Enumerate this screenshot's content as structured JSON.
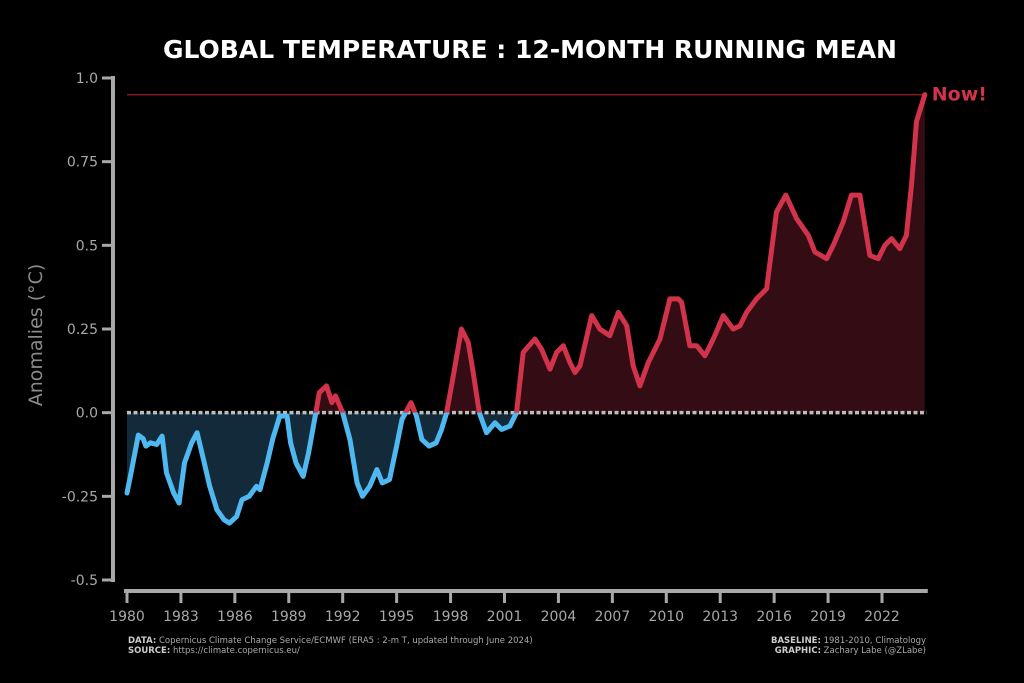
{
  "chart_data": {
    "type": "area",
    "title": "GLOBAL TEMPERATURE : 12-MONTH RUNNING MEAN",
    "xlabel": "",
    "ylabel": "Anomalies (°C)",
    "xlim": [
      1980,
      2024.5
    ],
    "ylim": [
      -0.5,
      1.0
    ],
    "yticks": [
      -0.5,
      -0.25,
      0.0,
      0.25,
      0.5,
      0.75,
      1.0
    ],
    "ytick_labels": [
      "-0.5",
      "-0.25",
      "0.0",
      "0.25",
      "0.5",
      "0.75",
      "1.0"
    ],
    "xticks": [
      1980,
      1983,
      1986,
      1989,
      1992,
      1995,
      1998,
      2001,
      2004,
      2007,
      2010,
      2013,
      2016,
      2019,
      2022
    ],
    "xtick_labels": [
      "1980",
      "1983",
      "1986",
      "1989",
      "1992",
      "1995",
      "1998",
      "2001",
      "2004",
      "2007",
      "2010",
      "2013",
      "2016",
      "2019",
      "2022"
    ],
    "grid": false,
    "positive_color": "#d0334a",
    "negative_color": "#4fb8f0",
    "positive_fill": "#330c14",
    "negative_fill": "#122a3a",
    "reference_line": {
      "value": 0.95,
      "color": "#a01e2e"
    },
    "annotation": "Now!",
    "series": [
      {
        "name": "12-month running mean",
        "x": [
          1980.0,
          1980.26,
          1980.63,
          1980.9,
          1981.05,
          1981.3,
          1981.65,
          1981.95,
          1982.2,
          1982.6,
          1982.9,
          1983.2,
          1983.6,
          1983.9,
          1984.3,
          1984.6,
          1985.0,
          1985.4,
          1985.7,
          1986.1,
          1986.4,
          1986.8,
          1987.2,
          1987.4,
          1987.8,
          1988.1,
          1988.5,
          1988.9,
          1989.1,
          1989.4,
          1989.8,
          1990.1,
          1990.5,
          1990.7,
          1991.1,
          1991.4,
          1991.6,
          1992.0,
          1992.4,
          1992.8,
          1993.1,
          1993.5,
          1993.9,
          1994.2,
          1994.6,
          1995.0,
          1995.3,
          1995.8,
          1996.1,
          1996.4,
          1996.8,
          1997.2,
          1997.5,
          1997.78,
          1998.15,
          1998.6,
          1998.98,
          1999.26,
          1999.6,
          2000.0,
          2000.47,
          2000.84,
          2001.3,
          2001.67,
          2002.04,
          2002.69,
          2003.06,
          2003.53,
          2003.9,
          2004.27,
          2004.64,
          2004.92,
          2005.2,
          2005.85,
          2006.3,
          2006.86,
          2007.33,
          2007.8,
          2008.16,
          2008.53,
          2009.0,
          2009.65,
          2010.2,
          2010.67,
          2010.85,
          2011.31,
          2011.69,
          2012.15,
          2012.43,
          2012.7,
          2013.17,
          2013.72,
          2014.1,
          2014.47,
          2015.02,
          2015.58,
          2016.13,
          2016.65,
          2017.25,
          2017.9,
          2018.27,
          2018.92,
          2019.29,
          2019.84,
          2020.3,
          2020.77,
          2021.32,
          2021.79,
          2022.16,
          2022.53,
          2022.99,
          2023.36,
          2023.64,
          2023.92,
          2024.38
        ],
        "values": [
          -0.24,
          -0.17,
          -0.067,
          -0.078,
          -0.1,
          -0.09,
          -0.095,
          -0.07,
          -0.18,
          -0.24,
          -0.27,
          -0.15,
          -0.09,
          -0.06,
          -0.15,
          -0.22,
          -0.29,
          -0.32,
          -0.33,
          -0.31,
          -0.26,
          -0.25,
          -0.22,
          -0.23,
          -0.15,
          -0.08,
          -0.01,
          -0.01,
          -0.09,
          -0.15,
          -0.19,
          -0.12,
          0.0,
          0.06,
          0.08,
          0.03,
          0.05,
          0.0,
          -0.08,
          -0.21,
          -0.25,
          -0.22,
          -0.17,
          -0.21,
          -0.2,
          -0.1,
          -0.02,
          0.03,
          -0.01,
          -0.08,
          -0.1,
          -0.09,
          -0.05,
          0.0,
          0.11,
          0.25,
          0.21,
          0.12,
          0.0,
          -0.06,
          -0.03,
          -0.05,
          -0.04,
          0.0,
          0.18,
          0.22,
          0.19,
          0.13,
          0.18,
          0.2,
          0.15,
          0.12,
          0.14,
          0.29,
          0.25,
          0.23,
          0.3,
          0.26,
          0.14,
          0.08,
          0.15,
          0.22,
          0.34,
          0.34,
          0.33,
          0.2,
          0.2,
          0.17,
          0.2,
          0.23,
          0.29,
          0.25,
          0.26,
          0.3,
          0.34,
          0.37,
          0.6,
          0.65,
          0.58,
          0.53,
          0.48,
          0.46,
          0.5,
          0.57,
          0.65,
          0.65,
          0.47,
          0.46,
          0.5,
          0.52,
          0.49,
          0.53,
          0.68,
          0.87,
          0.95
        ]
      }
    ]
  },
  "footer": {
    "data_label": "DATA:",
    "data_text": "Copernicus Climate Change Service/ECMWF (ERA5 : 2-m T, updated through June 2024)",
    "source_label": "SOURCE:",
    "source_text": "https://climate.copernicus.eu/",
    "baseline_label": "BASELINE:",
    "baseline_text": "1981-2010, Climatology",
    "graphic_label": "GRAPHIC:",
    "graphic_text": "Zachary Labe (@ZLabe)"
  }
}
